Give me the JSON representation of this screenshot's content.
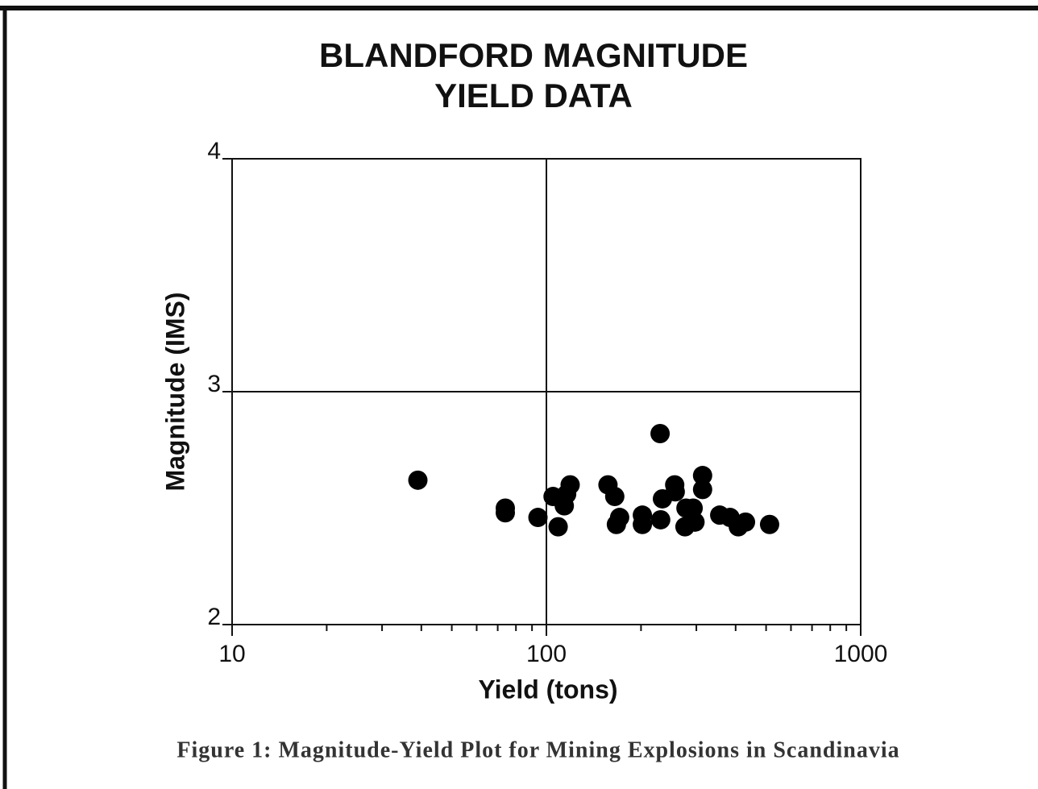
{
  "chart_data": {
    "type": "scatter",
    "title": [
      "BLANDFORD MAGNITUDE",
      "YIELD DATA"
    ],
    "x_label": "Yield (tons)",
    "y_label": "Magnitude (IMS)",
    "xscale": "log",
    "xlim": [
      10,
      1000
    ],
    "ylim": [
      2,
      4
    ],
    "xticks": [
      10,
      100,
      1000
    ],
    "yticks": [
      2,
      3,
      4
    ],
    "xminorticks": [
      20,
      30,
      40,
      50,
      60,
      70,
      80,
      90,
      200,
      300,
      400,
      500,
      600,
      700,
      800,
      900
    ],
    "grid": true,
    "color": "#000000",
    "x": [
      39,
      74,
      74,
      94,
      105,
      109,
      114,
      116,
      119,
      157,
      165,
      167,
      171,
      202,
      202,
      230,
      231,
      234,
      256,
      257,
      276,
      278,
      293,
      297,
      314,
      314,
      356,
      384,
      408,
      430,
      513
    ],
    "values": [
      2.62,
      2.5,
      2.48,
      2.46,
      2.55,
      2.42,
      2.51,
      2.56,
      2.6,
      2.6,
      2.55,
      2.43,
      2.46,
      2.47,
      2.43,
      2.82,
      2.45,
      2.54,
      2.6,
      2.57,
      2.42,
      2.5,
      2.5,
      2.44,
      2.64,
      2.58,
      2.47,
      2.46,
      2.42,
      2.44,
      2.43
    ]
  },
  "caption": "Figure 1: Magnitude-Yield Plot for Mining Explosions in Scandinavia"
}
